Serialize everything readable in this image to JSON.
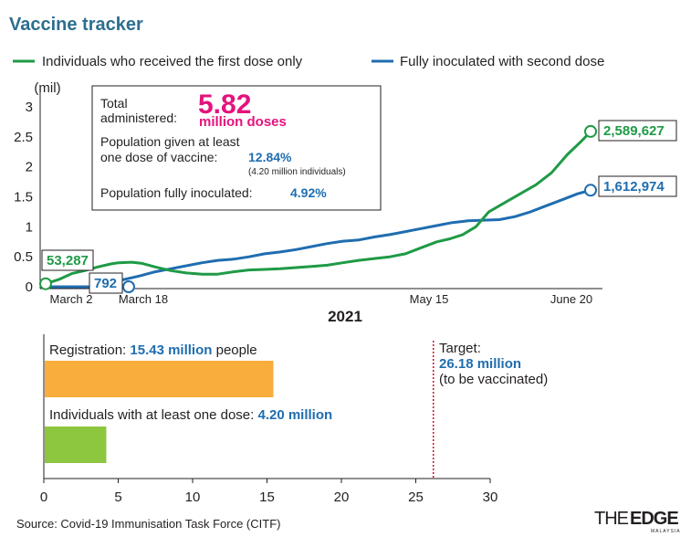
{
  "title": "Vaccine tracker",
  "colors": {
    "first_dose": "#1f9a46",
    "fully": "#1f6db0",
    "title": "#2c6e8f",
    "pink": "#e5127d",
    "registration": "#f9ad3c",
    "at_least_one": "#8dc63f",
    "target_line": "#c8102e"
  },
  "chart_data": [
    {
      "type": "line",
      "ylabel": "(mil)",
      "xlabel": "2021",
      "ylim": [
        0,
        3
      ],
      "yticks": [
        "0",
        "0.5",
        "1",
        "1.5",
        "2",
        "2.5",
        "3"
      ],
      "xticks": [
        "March 2",
        "March 18",
        "May 15",
        "June 20"
      ],
      "series": [
        {
          "name": "Individuals who received the first dose only",
          "color": "#1f9a46",
          "start_label": "53,287",
          "end_label": "2,589,627",
          "points": [
            [
              0,
              0.05
            ],
            [
              5,
              0.12
            ],
            [
              10,
              0.22
            ],
            [
              15,
              0.27
            ],
            [
              20,
              0.33
            ],
            [
              25,
              0.38
            ],
            [
              28,
              0.4
            ],
            [
              33,
              0.41
            ],
            [
              37,
              0.39
            ],
            [
              42,
              0.33
            ],
            [
              48,
              0.27
            ],
            [
              54,
              0.23
            ],
            [
              60,
              0.21
            ],
            [
              66,
              0.21
            ],
            [
              72,
              0.25
            ],
            [
              78,
              0.28
            ],
            [
              84,
              0.29
            ],
            [
              90,
              0.3
            ],
            [
              96,
              0.32
            ],
            [
              102,
              0.34
            ],
            [
              108,
              0.36
            ],
            [
              114,
              0.4
            ],
            [
              120,
              0.44
            ],
            [
              126,
              0.47
            ],
            [
              132,
              0.5
            ],
            [
              138,
              0.55
            ],
            [
              144,
              0.65
            ],
            [
              150,
              0.75
            ],
            [
              155,
              0.8
            ],
            [
              160,
              0.87
            ],
            [
              165,
              1.0
            ],
            [
              170,
              1.25
            ],
            [
              176,
              1.4
            ],
            [
              182,
              1.55
            ],
            [
              188,
              1.7
            ],
            [
              194,
              1.9
            ],
            [
              200,
              2.2
            ],
            [
              206,
              2.45
            ],
            [
              209,
              2.59
            ]
          ]
        },
        {
          "name": "Fully inoculated with second dose",
          "color": "#1f6db0",
          "start_label": "792",
          "end_label": "1,612,974",
          "points": [
            [
              0,
              0.0
            ],
            [
              15,
              0.0
            ],
            [
              18,
              0.001
            ],
            [
              25,
              0.05
            ],
            [
              30,
              0.12
            ],
            [
              36,
              0.18
            ],
            [
              42,
              0.25
            ],
            [
              48,
              0.3
            ],
            [
              54,
              0.35
            ],
            [
              60,
              0.4
            ],
            [
              66,
              0.44
            ],
            [
              72,
              0.46
            ],
            [
              78,
              0.5
            ],
            [
              84,
              0.55
            ],
            [
              90,
              0.58
            ],
            [
              96,
              0.62
            ],
            [
              102,
              0.67
            ],
            [
              108,
              0.72
            ],
            [
              114,
              0.76
            ],
            [
              120,
              0.78
            ],
            [
              126,
              0.83
            ],
            [
              132,
              0.87
            ],
            [
              138,
              0.92
            ],
            [
              144,
              0.97
            ],
            [
              150,
              1.02
            ],
            [
              156,
              1.07
            ],
            [
              162,
              1.1
            ],
            [
              168,
              1.11
            ],
            [
              174,
              1.12
            ],
            [
              180,
              1.17
            ],
            [
              186,
              1.25
            ],
            [
              192,
              1.35
            ],
            [
              198,
              1.45
            ],
            [
              204,
              1.55
            ],
            [
              209,
              1.61
            ]
          ]
        }
      ]
    },
    {
      "type": "bar",
      "orientation": "horizontal",
      "xlim": [
        0,
        30
      ],
      "xticks": [
        "0",
        "5",
        "10",
        "15",
        "20",
        "25",
        "30"
      ],
      "categories": [
        "Registration",
        "Individuals with at least one dose"
      ],
      "values": [
        15.43,
        4.2
      ],
      "target_value": 26.18
    }
  ],
  "info_box": {
    "total_label_1": "Total",
    "total_label_2": "administered:",
    "total_value": "5.82",
    "total_unit": "million doses",
    "pop_one_1": "Population given at least",
    "pop_one_2": "one dose of vaccine:",
    "pop_one_value": "12.84%",
    "pop_one_note": "(4.20 million individuals)",
    "pop_full_label": "Population fully inoculated:",
    "pop_full_value": "4.92%"
  },
  "bars_text": {
    "reg_label": "Registration:",
    "reg_value": "15.43 million",
    "reg_suffix": "people",
    "dose_label": "Individuals with at least one dose:",
    "dose_value": "4.20 million",
    "target_label": "Target:",
    "target_value": "26.18 million",
    "target_note": "(to be vaccinated)"
  },
  "source": "Source: Covid-19 Immunisation Task Force (CITF)",
  "logo": {
    "the": "THE",
    "edge": "EDGE",
    "sub": "MALAYSIA"
  }
}
